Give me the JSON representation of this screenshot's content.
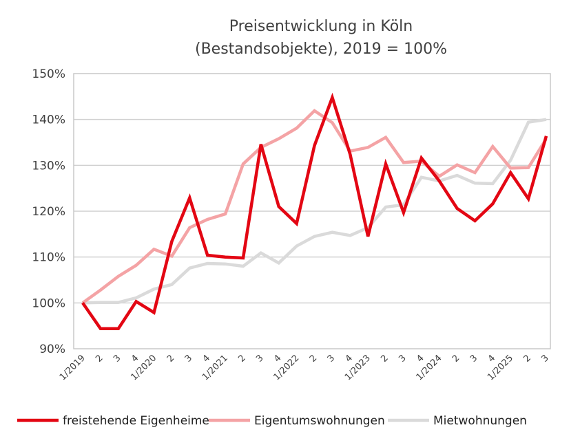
{
  "chart_data": {
    "type": "line",
    "title": [
      "Preisentwicklung in Köln",
      "(Bestandsobjekte), 2019 = 100%"
    ],
    "xlabel": "",
    "ylabel": "",
    "ylim": [
      90,
      150
    ],
    "yticks": [
      90,
      100,
      110,
      120,
      130,
      140,
      150
    ],
    "ytick_labels": [
      "90%",
      "100%",
      "110%",
      "120%",
      "130%",
      "140%",
      "150%"
    ],
    "grid": true,
    "legend_position": "bottom",
    "categories": [
      "1/2019",
      "2",
      "3",
      "4",
      "1/2020",
      "2",
      "3",
      "4",
      "1/2021",
      "2",
      "3",
      "4",
      "1/2022",
      "2",
      "3",
      "4",
      "1/2023",
      "2",
      "3",
      "4",
      "1/2024",
      "2",
      "3",
      "4",
      "1/2025",
      "2",
      "3"
    ],
    "series": [
      {
        "name": "freistehende Eigenheime",
        "color": "#e30613",
        "values": [
          100,
          94.4,
          94.4,
          100.3,
          97.9,
          113.4,
          122.9,
          110.4,
          110.0,
          109.8,
          134.6,
          121.0,
          117.3,
          134.3,
          144.8,
          132.4,
          114.5,
          130.3,
          119.7,
          131.6,
          126.6,
          120.6,
          117.9,
          121.6,
          128.4,
          122.7,
          136.4
        ]
      },
      {
        "name": "Eigentumswohnungen",
        "color": "#f4a3a5",
        "values": [
          100,
          102.8,
          105.8,
          108.2,
          111.7,
          110.2,
          116.4,
          118.2,
          119.4,
          130.3,
          133.9,
          135.8,
          138.1,
          141.9,
          139.3,
          133.1,
          133.9,
          136.1,
          130.6,
          130.9,
          127.6,
          130.1,
          128.4,
          134.1,
          129.4,
          129.5,
          135.8
        ]
      },
      {
        "name": "Mietwohnungen",
        "color": "#dadada",
        "values": [
          100,
          100.1,
          100.1,
          101.1,
          103.0,
          104.0,
          107.6,
          108.6,
          108.5,
          108.0,
          110.9,
          108.7,
          112.4,
          114.5,
          115.4,
          114.7,
          116.4,
          120.9,
          121.4,
          127.4,
          126.6,
          127.8,
          126.1,
          126.0,
          131.1,
          139.4,
          140.0
        ]
      }
    ]
  }
}
